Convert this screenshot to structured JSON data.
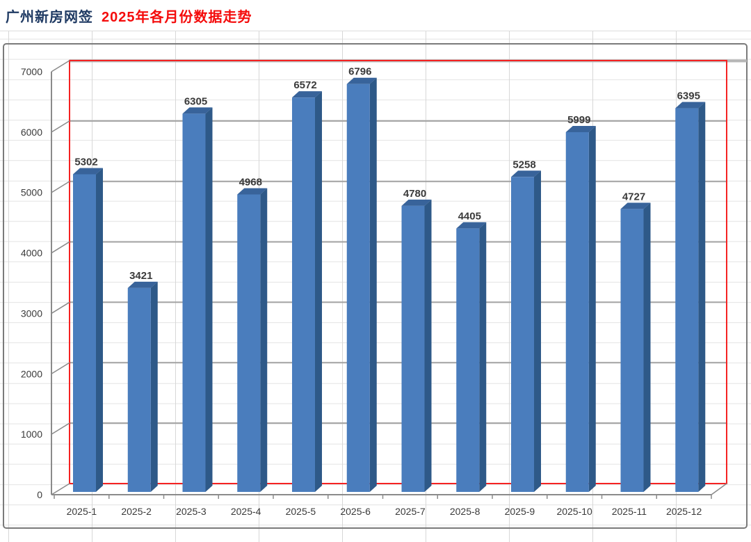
{
  "header": {
    "title_prefix": "广州新房网签",
    "title_main": "2025年各月份数据走势"
  },
  "chart_data": {
    "type": "bar",
    "style": "3d-column-excel",
    "title": "广州新房网签 2025年各月份数据走势",
    "categories": [
      "2025-1",
      "2025-2",
      "2025-3",
      "2025-4",
      "2025-5",
      "2025-6",
      "2025-7",
      "2025-8",
      "2025-9",
      "2025-10",
      "2025-11",
      "2025-12"
    ],
    "values": [
      5302,
      3421,
      6305,
      4968,
      6572,
      6796,
      4780,
      4405,
      5258,
      5999,
      4727,
      6395
    ],
    "data_labels_visible": true,
    "xlabel": "",
    "ylabel": "",
    "ylim": [
      0,
      7000
    ],
    "ytick_step": 1000,
    "yticks": [
      0,
      1000,
      2000,
      3000,
      4000,
      5000,
      6000,
      7000
    ],
    "grid": "horizontal-major",
    "legend": false
  },
  "colors": {
    "title_prefix": "#1f3a63",
    "title_main": "#f40b0b",
    "bar_front": "#4a7dbd",
    "bar_top": "#38639a",
    "bar_side": "#2e5988",
    "plot_border": "#f52222",
    "gridline_major": "#a2a2a2",
    "sheet_line_thick": "#b6b6b6",
    "axis": "#8a8a8a",
    "label": "#3a3a3a",
    "chart_frame": "#7a7a7a"
  }
}
